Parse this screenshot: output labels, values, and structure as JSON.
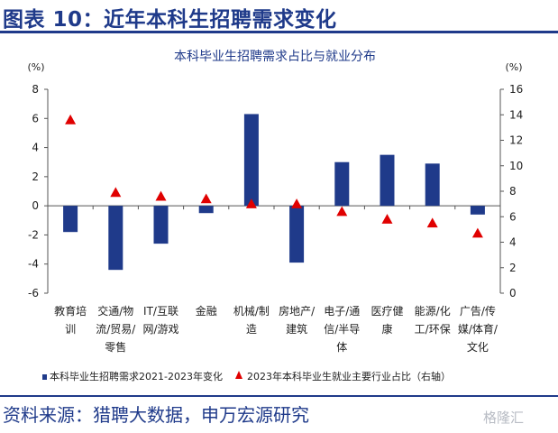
{
  "figure": {
    "title": "图表 10：近年本科生招聘需求变化",
    "source": "资料来源：猎聘大数据，申万宏源研究",
    "watermark": "格隆汇"
  },
  "colors": {
    "bar": "#1f3a8a",
    "marker": "#e00000",
    "title": "#1f3a8a",
    "axis": "#555555"
  },
  "chart_data": {
    "type": "bar",
    "title": "本科毕业生招聘需求占比与就业分布",
    "y_unit_left": "(%)",
    "y_unit_right": "(%)",
    "categories": [
      [
        "教育培",
        "训"
      ],
      [
        "交通/物",
        "流/贸易/",
        "零售"
      ],
      [
        "IT/互联",
        "网/游戏"
      ],
      [
        "金融"
      ],
      [
        "机械/制",
        "造"
      ],
      [
        "房地产/",
        "建筑"
      ],
      [
        "电子/通",
        "信/半导",
        "体"
      ],
      [
        "医疗健",
        "康"
      ],
      [
        "能源/化",
        "工/环保"
      ],
      [
        "广告/传",
        "媒/体育/",
        "文化"
      ]
    ],
    "ylim": [
      -6,
      8
    ],
    "yticks": [
      -6,
      -4,
      -2,
      0,
      2,
      4,
      6,
      8
    ],
    "y2lim": [
      0,
      16
    ],
    "y2ticks": [
      0,
      2,
      4,
      6,
      8,
      10,
      12,
      14,
      16
    ],
    "series": [
      {
        "name": "本科毕业生招聘需求2021-2023年变化",
        "type": "bar",
        "axis": "left",
        "values": [
          -1.8,
          -4.4,
          -2.6,
          -0.5,
          6.3,
          -3.9,
          3.0,
          3.5,
          2.9,
          -0.6
        ]
      },
      {
        "name": "2023年本科毕业生就业主要行业占比（右轴）",
        "type": "scatter",
        "marker": "triangle",
        "axis": "right",
        "values": [
          13.6,
          7.9,
          7.6,
          7.4,
          7.0,
          7.0,
          6.4,
          5.8,
          5.5,
          4.7
        ]
      }
    ]
  }
}
